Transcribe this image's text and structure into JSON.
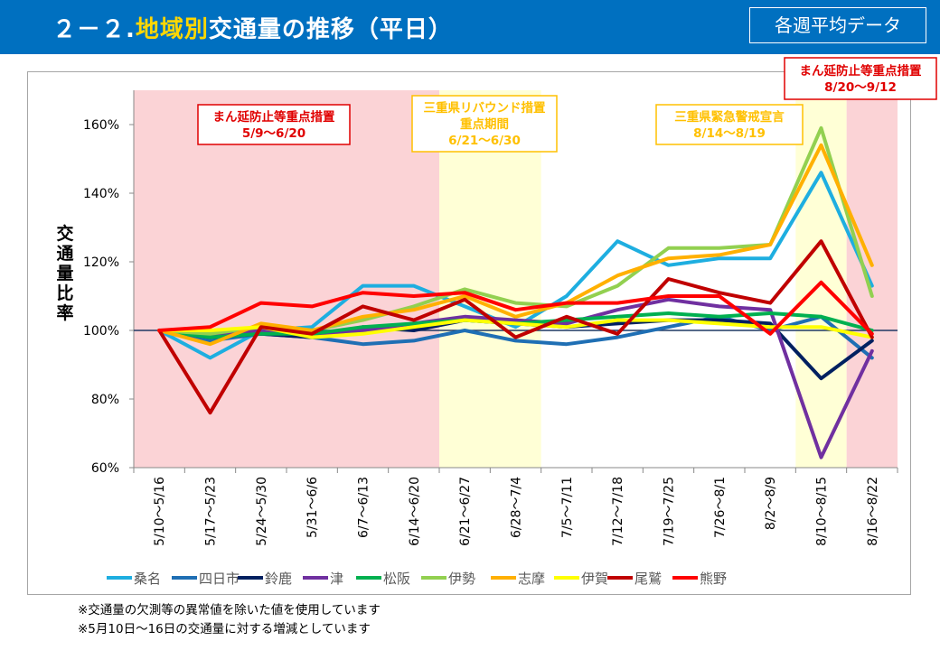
{
  "header": {
    "title_prefix": "２－２.",
    "title_highlight": "地域別",
    "title_suffix": "交通量の推移（平日）",
    "badge": "各週平均データ"
  },
  "colors": {
    "header_bg": "#0070c0",
    "highlight": "#ffd700",
    "emergency_band": "#fbd3d6",
    "rebound_band": "#ffffd6",
    "alert_band": "#ffffd6",
    "emergency_label": "#e00000",
    "rebound_label": "#ffc000"
  },
  "chart_data": {
    "type": "line",
    "title": "",
    "xlabel": "",
    "ylabel": "交通量比率",
    "ylim": [
      60,
      170
    ],
    "yticks": [
      60,
      80,
      100,
      120,
      140,
      160
    ],
    "ytick_labels": [
      "60%",
      "80%",
      "100%",
      "120%",
      "140%",
      "160%"
    ],
    "reference_line": 100,
    "grid": false,
    "legend_position": "bottom",
    "categories": [
      "5/10～5/16",
      "5/17～5/23",
      "5/24～5/30",
      "5/31～6/6",
      "6/7～6/13",
      "6/14～6/20",
      "6/21～6/27",
      "6/28～7/4",
      "7/5～7/11",
      "7/12～7/18",
      "7/19～7/25",
      "7/26～8/1",
      "8/2～8/9",
      "8/10～8/15",
      "8/16～8/22"
    ],
    "series": [
      {
        "name": "桑名",
        "color": "#1eaee0",
        "values": [
          100,
          92,
          100,
          101,
          113,
          113,
          107,
          101,
          110,
          126,
          119,
          121,
          121,
          146,
          113
        ]
      },
      {
        "name": "四日市",
        "color": "#1f6fb4",
        "values": [
          100,
          97,
          99,
          98,
          96,
          97,
          100,
          97,
          96,
          98,
          101,
          104,
          100,
          104,
          92
        ]
      },
      {
        "name": "鈴鹿",
        "color": "#002060",
        "values": [
          100,
          98,
          99,
          98,
          101,
          100,
          103,
          102,
          101,
          102,
          103,
          103,
          102,
          86,
          97
        ]
      },
      {
        "name": "津",
        "color": "#7030a0",
        "values": [
          100,
          99,
          100,
          99,
          100,
          102,
          104,
          103,
          102,
          106,
          109,
          107,
          106,
          63,
          94
        ]
      },
      {
        "name": "松阪",
        "color": "#00b050",
        "values": [
          100,
          98,
          99,
          99,
          101,
          102,
          103,
          102,
          103,
          104,
          105,
          104,
          105,
          104,
          100
        ]
      },
      {
        "name": "伊勢",
        "color": "#92d050",
        "values": [
          100,
          99,
          101,
          100,
          103,
          107,
          112,
          108,
          107,
          113,
          124,
          124,
          125,
          159,
          110
        ]
      },
      {
        "name": "志摩",
        "color": "#ffb000",
        "values": [
          100,
          96,
          102,
          100,
          104,
          106,
          110,
          104,
          108,
          116,
          121,
          122,
          125,
          154,
          119
        ]
      },
      {
        "name": "伊賀",
        "color": "#ffff00",
        "values": [
          100,
          100,
          101,
          98,
          99,
          101,
          103,
          102,
          101,
          103,
          103,
          102,
          101,
          101,
          98
        ]
      },
      {
        "name": "尾鷲",
        "color": "#c00000",
        "values": [
          100,
          76,
          101,
          99,
          107,
          103,
          109,
          98,
          104,
          99,
          115,
          111,
          108,
          126,
          98
        ]
      },
      {
        "name": "熊野",
        "color": "#ff0000",
        "values": [
          100,
          101,
          108,
          107,
          111,
          110,
          111,
          106,
          108,
          108,
          110,
          110,
          99,
          114,
          99
        ]
      }
    ],
    "bands": [
      {
        "from": "5/10～5/16",
        "to": "6/14～6/20",
        "color": "#fbd3d6",
        "label_lines": [
          "まん延防止等重点措置",
          "5/9～6/20"
        ],
        "label_color": "#e00000"
      },
      {
        "from": "6/21～6/27",
        "to": "6/28～7/4",
        "color": "#ffffd6",
        "label_lines": [
          "三重県リバウンド措置",
          "重点期間",
          "6/21～6/30"
        ],
        "label_color": "#ffc000"
      },
      {
        "from": "8/10～8/15",
        "to": "8/10～8/15",
        "color": "#ffffd6",
        "label_lines": [
          "三重県緊急警戒宣言",
          "8/14～8/19"
        ],
        "label_color": "#ffc000"
      },
      {
        "from": "8/16～8/22",
        "to": "8/16～8/22",
        "color": "#fbd3d6",
        "label_lines": [
          "まん延防止等重点措置",
          "8/20～9/12"
        ],
        "label_color": "#e00000"
      }
    ]
  },
  "notes": [
    "※交通量の欠測等の異常値を除いた値を使用しています",
    "※5月10日～16日の交通量に対する増減としています"
  ]
}
